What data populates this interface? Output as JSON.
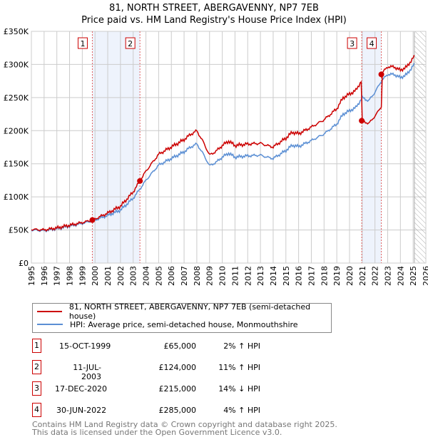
{
  "title": "81, NORTH STREET, ABERGAVENNY, NP7 7EB",
  "subtitle": "Price paid vs. HM Land Registry's House Price Index (HPI)",
  "colors": {
    "price": "#cc0000",
    "hpi": "#5b8fd4",
    "shade": "#eef3fc"
  },
  "legend": {
    "price": "81, NORTH STREET, ABERGAVENNY, NP7 7EB (semi-detached house)",
    "hpi": "HPI: Average price, semi-detached house, Monmouthshire"
  },
  "sales": [
    {
      "n": "1",
      "date": "15-OCT-1999",
      "price": "£65,000",
      "delta": "2% ↑ HPI",
      "t": 1999.79,
      "v": 65000
    },
    {
      "n": "2",
      "date": "11-JUL-2003",
      "price": "£124,000",
      "delta": "11% ↑ HPI",
      "t": 2003.53,
      "v": 124000
    },
    {
      "n": "3",
      "date": "17-DEC-2020",
      "price": "£215,000",
      "delta": "14% ↓ HPI",
      "t": 2020.96,
      "v": 215000
    },
    {
      "n": "4",
      "date": "30-JUN-2022",
      "price": "£285,000",
      "delta": "4% ↑ HPI",
      "t": 2022.5,
      "v": 285000
    }
  ],
  "footer": [
    "Contains HM Land Registry data © Crown copyright and database right 2025.",
    "This data is licensed under the Open Government Licence v3.0."
  ],
  "chart_data": {
    "type": "line",
    "xlim": [
      1995,
      2026
    ],
    "ylim": [
      0,
      350000
    ],
    "yticks": [
      0,
      50000,
      100000,
      150000,
      200000,
      250000,
      300000,
      350000
    ],
    "ytick_labels": [
      "£0",
      "£50K",
      "£100K",
      "£150K",
      "£200K",
      "£250K",
      "£300K",
      "£350K"
    ],
    "xticks": [
      1995,
      1996,
      1997,
      1998,
      1999,
      2000,
      2001,
      2002,
      2003,
      2004,
      2005,
      2006,
      2007,
      2008,
      2009,
      2010,
      2011,
      2012,
      2013,
      2014,
      2015,
      2016,
      2017,
      2018,
      2019,
      2020,
      2021,
      2022,
      2023,
      2024,
      2025,
      2026
    ],
    "forecast_start": 2025.1,
    "hpi": {
      "x": [
        1995,
        1996,
        1997,
        1998,
        1999,
        1999.8,
        2000,
        2001,
        2002,
        2003,
        2003.5,
        2004,
        2005,
        2006,
        2007,
        2007.5,
        2008,
        2008.5,
        2009,
        2009.5,
        2010,
        2010.5,
        2011,
        2012,
        2013,
        2013.5,
        2014,
        2015,
        2015.5,
        2016,
        2017,
        2018,
        2019,
        2019.5,
        2020,
        2020.5,
        2021,
        2021.5,
        2022,
        2022.5,
        2023,
        2023.5,
        2024,
        2024.5,
        2025,
        2025.1
      ],
      "y": [
        50000,
        49000,
        52000,
        56000,
        60000,
        63700,
        65000,
        72000,
        80000,
        98000,
        111000,
        125000,
        148000,
        158000,
        168000,
        175000,
        180000,
        165000,
        147000,
        152000,
        160000,
        166000,
        160000,
        162000,
        163000,
        160000,
        158000,
        170000,
        178000,
        176000,
        185000,
        195000,
        210000,
        225000,
        230000,
        235000,
        250000,
        245000,
        258000,
        275000,
        285000,
        285000,
        280000,
        285000,
        298000,
        300000
      ]
    },
    "price_factor": {
      "x": [
        1999.79,
        2003.53,
        2020.96,
        2022.5
      ],
      "factors": [
        1.02,
        1.11,
        0.86,
        1.04
      ]
    }
  }
}
